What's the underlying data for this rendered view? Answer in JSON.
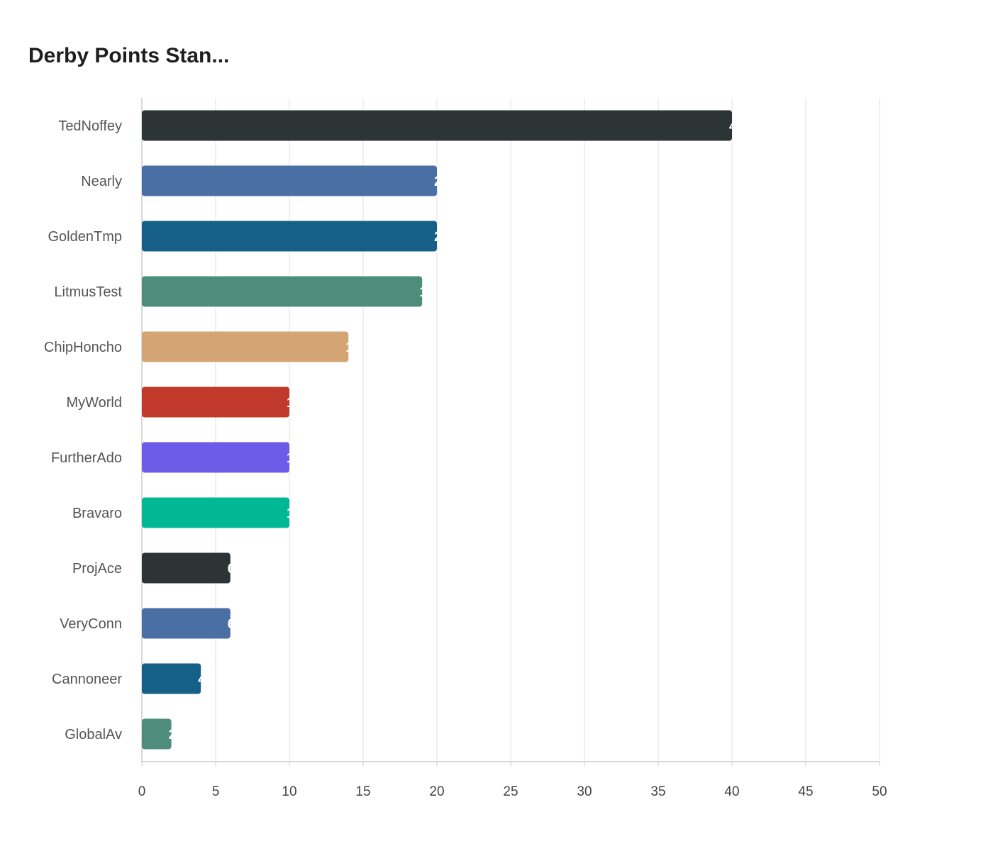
{
  "chart_data": {
    "type": "bar",
    "orientation": "horizontal",
    "title": "Derby Points Stan...",
    "xlabel": "",
    "ylabel": "",
    "xlim": [
      0,
      50
    ],
    "xticks": [
      0,
      5,
      10,
      15,
      20,
      25,
      30,
      35,
      40,
      45,
      50
    ],
    "grid": true,
    "categories": [
      "TedNoffey",
      "Nearly",
      "GoldenTmp",
      "LitmusTest",
      "ChipHoncho",
      "MyWorld",
      "FurtherAdo",
      "Bravaro",
      "ProjAce",
      "VeryConn",
      "Cannoneer",
      "GlobalAv"
    ],
    "values": [
      40,
      20,
      20,
      19,
      14,
      10,
      10,
      10,
      6,
      6,
      4,
      2
    ],
    "colors": [
      "#2d3436",
      "#4a6fa5",
      "#166088",
      "#4e8d7c",
      "#d4a574",
      "#c0392b",
      "#6c5ce7",
      "#00b894",
      "#2d3436",
      "#4a6fa5",
      "#166088",
      "#4e8d7c"
    ]
  }
}
